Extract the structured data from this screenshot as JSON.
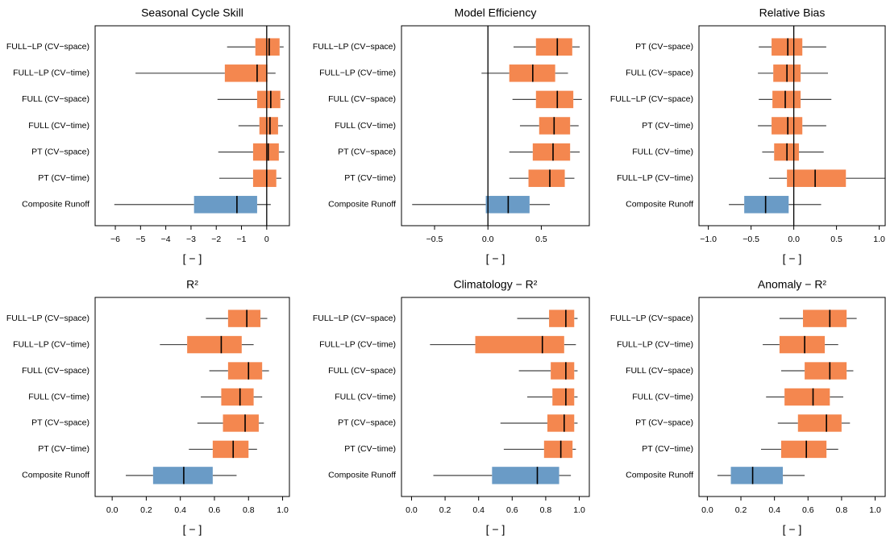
{
  "chart_data": [
    {
      "type": "boxplot",
      "title": "Seasonal Cycle Skill",
      "xlabel": "[ − ]",
      "categories": [
        "FULL−LP (CV−space)",
        "FULL−LP (CV−time)",
        "FULL (CV−space)",
        "FULL (CV−time)",
        "PT (CV−space)",
        "PT (CV−time)",
        "Composite Runoff"
      ],
      "boxes": [
        {
          "whisker_low": -1.57,
          "q1": -0.45,
          "median": 0.1,
          "q3": 0.51,
          "whisker_high": 0.67,
          "color": "#f4874f"
        },
        {
          "whisker_low": -5.2,
          "q1": -1.66,
          "median": -0.38,
          "q3": 0.03,
          "whisker_high": 0.35,
          "color": "#f4874f"
        },
        {
          "whisker_low": -1.95,
          "q1": -0.38,
          "median": 0.16,
          "q3": 0.54,
          "whisker_high": 0.7,
          "color": "#f4874f"
        },
        {
          "whisker_low": -1.12,
          "q1": -0.29,
          "median": 0.13,
          "q3": 0.45,
          "whisker_high": 0.64,
          "color": "#f4874f"
        },
        {
          "whisker_low": -1.92,
          "q1": -0.54,
          "median": 0.06,
          "q3": 0.48,
          "whisker_high": 0.7,
          "color": "#f4874f"
        },
        {
          "whisker_low": -1.88,
          "q1": -0.54,
          "median": 0.0,
          "q3": 0.38,
          "whisker_high": 0.58,
          "color": "#f4874f"
        },
        {
          "whisker_low": -6.04,
          "q1": -2.88,
          "median": -1.18,
          "q3": -0.38,
          "whisker_high": 0.16,
          "color": "#6a9bc6"
        }
      ],
      "xlim": [
        -6.8,
        0.9
      ],
      "xticks": [
        {
          "value": -6,
          "label": "−6"
        },
        {
          "value": -5,
          "label": "−5"
        },
        {
          "value": -4,
          "label": "−4"
        },
        {
          "value": -3,
          "label": "−3"
        },
        {
          "value": -2,
          "label": "−2"
        },
        {
          "value": -1,
          "label": "−1"
        },
        0
      ],
      "reference_line": 0
    },
    {
      "type": "boxplot",
      "title": "Model Efficiency",
      "xlabel": "[ − ]",
      "categories": [
        "FULL−LP (CV−space)",
        "FULL−LP (CV−time)",
        "FULL (CV−space)",
        "FULL (CV−time)",
        "PT (CV−space)",
        "PT (CV−time)",
        "Composite Runoff"
      ],
      "boxes": [
        {
          "whisker_low": 0.24,
          "q1": 0.45,
          "median": 0.65,
          "q3": 0.79,
          "whisker_high": 0.86,
          "color": "#f4874f"
        },
        {
          "whisker_low": -0.06,
          "q1": 0.2,
          "median": 0.42,
          "q3": 0.63,
          "whisker_high": 0.75,
          "color": "#f4874f"
        },
        {
          "whisker_low": 0.23,
          "q1": 0.45,
          "median": 0.65,
          "q3": 0.8,
          "whisker_high": 0.88,
          "color": "#f4874f"
        },
        {
          "whisker_low": 0.3,
          "q1": 0.48,
          "median": 0.62,
          "q3": 0.77,
          "whisker_high": 0.85,
          "color": "#f4874f"
        },
        {
          "whisker_low": 0.2,
          "q1": 0.42,
          "median": 0.61,
          "q3": 0.77,
          "whisker_high": 0.86,
          "color": "#f4874f"
        },
        {
          "whisker_low": 0.2,
          "q1": 0.38,
          "median": 0.58,
          "q3": 0.72,
          "whisker_high": 0.81,
          "color": "#f4874f"
        },
        {
          "whisker_low": -0.71,
          "q1": -0.02,
          "median": 0.19,
          "q3": 0.39,
          "whisker_high": 0.58,
          "color": "#6a9bc6"
        }
      ],
      "xlim": [
        -0.81,
        0.95
      ],
      "xticks": [
        {
          "value": -0.5,
          "label": "−0.5"
        },
        {
          "value": 0,
          "label": "0.0"
        },
        0.5
      ],
      "reference_line": 0
    },
    {
      "type": "boxplot",
      "title": "Relative Bias",
      "xlabel": "[ − ]",
      "categories": [
        "PT (CV−space)",
        "FULL (CV−space)",
        "FULL−LP (CV−space)",
        "PT (CV−time)",
        "FULL (CV−time)",
        "FULL−LP (CV−time)",
        "Composite Runoff"
      ],
      "boxes": [
        {
          "whisker_low": -0.41,
          "q1": -0.26,
          "median": -0.07,
          "q3": 0.1,
          "whisker_high": 0.38,
          "color": "#f4874f"
        },
        {
          "whisker_low": -0.42,
          "q1": -0.24,
          "median": -0.08,
          "q3": 0.08,
          "whisker_high": 0.4,
          "color": "#f4874f"
        },
        {
          "whisker_low": -0.41,
          "q1": -0.25,
          "median": -0.1,
          "q3": 0.08,
          "whisker_high": 0.44,
          "color": "#f4874f"
        },
        {
          "whisker_low": -0.42,
          "q1": -0.26,
          "median": -0.07,
          "q3": 0.1,
          "whisker_high": 0.38,
          "color": "#f4874f"
        },
        {
          "whisker_low": -0.37,
          "q1": -0.23,
          "median": -0.08,
          "q3": 0.06,
          "whisker_high": 0.35,
          "color": "#f4874f"
        },
        {
          "whisker_low": -0.29,
          "q1": -0.08,
          "median": 0.25,
          "q3": 0.61,
          "whisker_high": 1.07,
          "color": "#f4874f"
        },
        {
          "whisker_low": -0.76,
          "q1": -0.58,
          "median": -0.33,
          "q3": -0.06,
          "whisker_high": 0.32,
          "color": "#6a9bc6"
        }
      ],
      "xlim": [
        -1.11,
        1.07
      ],
      "xticks": [
        {
          "value": -1,
          "label": "−1.0"
        },
        {
          "value": -0.5,
          "label": "−0.5"
        },
        {
          "value": 0,
          "label": "0.0"
        },
        0.5,
        {
          "value": 1,
          "label": "1.0"
        }
      ],
      "reference_line": 0
    },
    {
      "type": "boxplot",
      "title": "R²",
      "xlabel": "[ − ]",
      "categories": [
        "FULL−LP (CV−space)",
        "FULL−LP (CV−time)",
        "FULL (CV−space)",
        "FULL (CV−time)",
        "PT (CV−space)",
        "PT (CV−time)",
        "Composite Runoff"
      ],
      "boxes": [
        {
          "whisker_low": 0.55,
          "q1": 0.68,
          "median": 0.79,
          "q3": 0.87,
          "whisker_high": 0.91,
          "color": "#f4874f"
        },
        {
          "whisker_low": 0.28,
          "q1": 0.44,
          "median": 0.64,
          "q3": 0.76,
          "whisker_high": 0.83,
          "color": "#f4874f"
        },
        {
          "whisker_low": 0.57,
          "q1": 0.68,
          "median": 0.8,
          "q3": 0.88,
          "whisker_high": 0.92,
          "color": "#f4874f"
        },
        {
          "whisker_low": 0.52,
          "q1": 0.64,
          "median": 0.75,
          "q3": 0.83,
          "whisker_high": 0.88,
          "color": "#f4874f"
        },
        {
          "whisker_low": 0.5,
          "q1": 0.65,
          "median": 0.78,
          "q3": 0.86,
          "whisker_high": 0.89,
          "color": "#f4874f"
        },
        {
          "whisker_low": 0.45,
          "q1": 0.59,
          "median": 0.71,
          "q3": 0.8,
          "whisker_high": 0.85,
          "color": "#f4874f"
        },
        {
          "whisker_low": 0.08,
          "q1": 0.24,
          "median": 0.42,
          "q3": 0.59,
          "whisker_high": 0.73,
          "color": "#6a9bc6"
        }
      ],
      "xlim": [
        -0.1,
        1.04
      ],
      "xticks": [
        {
          "value": 0,
          "label": "0.0"
        },
        0.2,
        0.4,
        0.6,
        0.8,
        {
          "value": 1,
          "label": "1.0"
        }
      ]
    },
    {
      "type": "boxplot",
      "title": "Climatology − R²",
      "xlabel": "[ − ]",
      "categories": [
        "FULL−LP (CV−space)",
        "FULL−LP (CV−time)",
        "FULL (CV−space)",
        "FULL (CV−time)",
        "PT (CV−space)",
        "PT (CV−time)",
        "Composite Runoff"
      ],
      "boxes": [
        {
          "whisker_low": 0.63,
          "q1": 0.82,
          "median": 0.92,
          "q3": 0.97,
          "whisker_high": 0.99,
          "color": "#f4874f"
        },
        {
          "whisker_low": 0.11,
          "q1": 0.38,
          "median": 0.78,
          "q3": 0.91,
          "whisker_high": 0.98,
          "color": "#f4874f"
        },
        {
          "whisker_low": 0.64,
          "q1": 0.83,
          "median": 0.92,
          "q3": 0.97,
          "whisker_high": 0.99,
          "color": "#f4874f"
        },
        {
          "whisker_low": 0.69,
          "q1": 0.84,
          "median": 0.92,
          "q3": 0.97,
          "whisker_high": 0.99,
          "color": "#f4874f"
        },
        {
          "whisker_low": 0.53,
          "q1": 0.81,
          "median": 0.91,
          "q3": 0.97,
          "whisker_high": 0.99,
          "color": "#f4874f"
        },
        {
          "whisker_low": 0.55,
          "q1": 0.79,
          "median": 0.89,
          "q3": 0.96,
          "whisker_high": 0.98,
          "color": "#f4874f"
        },
        {
          "whisker_low": 0.13,
          "q1": 0.48,
          "median": 0.75,
          "q3": 0.88,
          "whisker_high": 0.95,
          "color": "#6a9bc6"
        }
      ],
      "xlim": [
        -0.06,
        1.06
      ],
      "xticks": [
        {
          "value": 0,
          "label": "0.0"
        },
        0.2,
        0.4,
        0.6,
        0.8,
        {
          "value": 1,
          "label": "1.0"
        }
      ]
    },
    {
      "type": "boxplot",
      "title": "Anomaly − R²",
      "xlabel": "[ − ]",
      "categories": [
        "FULL−LP (CV−space)",
        "FULL−LP (CV−time)",
        "FULL (CV−space)",
        "FULL (CV−time)",
        "PT (CV−space)",
        "PT (CV−time)",
        "Composite Runoff"
      ],
      "boxes": [
        {
          "whisker_low": 0.43,
          "q1": 0.57,
          "median": 0.73,
          "q3": 0.83,
          "whisker_high": 0.89,
          "color": "#f4874f"
        },
        {
          "whisker_low": 0.33,
          "q1": 0.43,
          "median": 0.58,
          "q3": 0.7,
          "whisker_high": 0.78,
          "color": "#f4874f"
        },
        {
          "whisker_low": 0.44,
          "q1": 0.58,
          "median": 0.73,
          "q3": 0.83,
          "whisker_high": 0.87,
          "color": "#f4874f"
        },
        {
          "whisker_low": 0.35,
          "q1": 0.46,
          "median": 0.63,
          "q3": 0.73,
          "whisker_high": 0.81,
          "color": "#f4874f"
        },
        {
          "whisker_low": 0.42,
          "q1": 0.54,
          "median": 0.71,
          "q3": 0.8,
          "whisker_high": 0.85,
          "color": "#f4874f"
        },
        {
          "whisker_low": 0.32,
          "q1": 0.44,
          "median": 0.59,
          "q3": 0.71,
          "whisker_high": 0.78,
          "color": "#f4874f"
        },
        {
          "whisker_low": 0.06,
          "q1": 0.14,
          "median": 0.27,
          "q3": 0.45,
          "whisker_high": 0.58,
          "color": "#6a9bc6"
        }
      ],
      "xlim": [
        -0.05,
        1.06
      ],
      "xticks": [
        {
          "value": 0,
          "label": "0.0"
        },
        0.2,
        0.4,
        0.6,
        0.8,
        {
          "value": 1,
          "label": "1.0"
        }
      ]
    }
  ]
}
